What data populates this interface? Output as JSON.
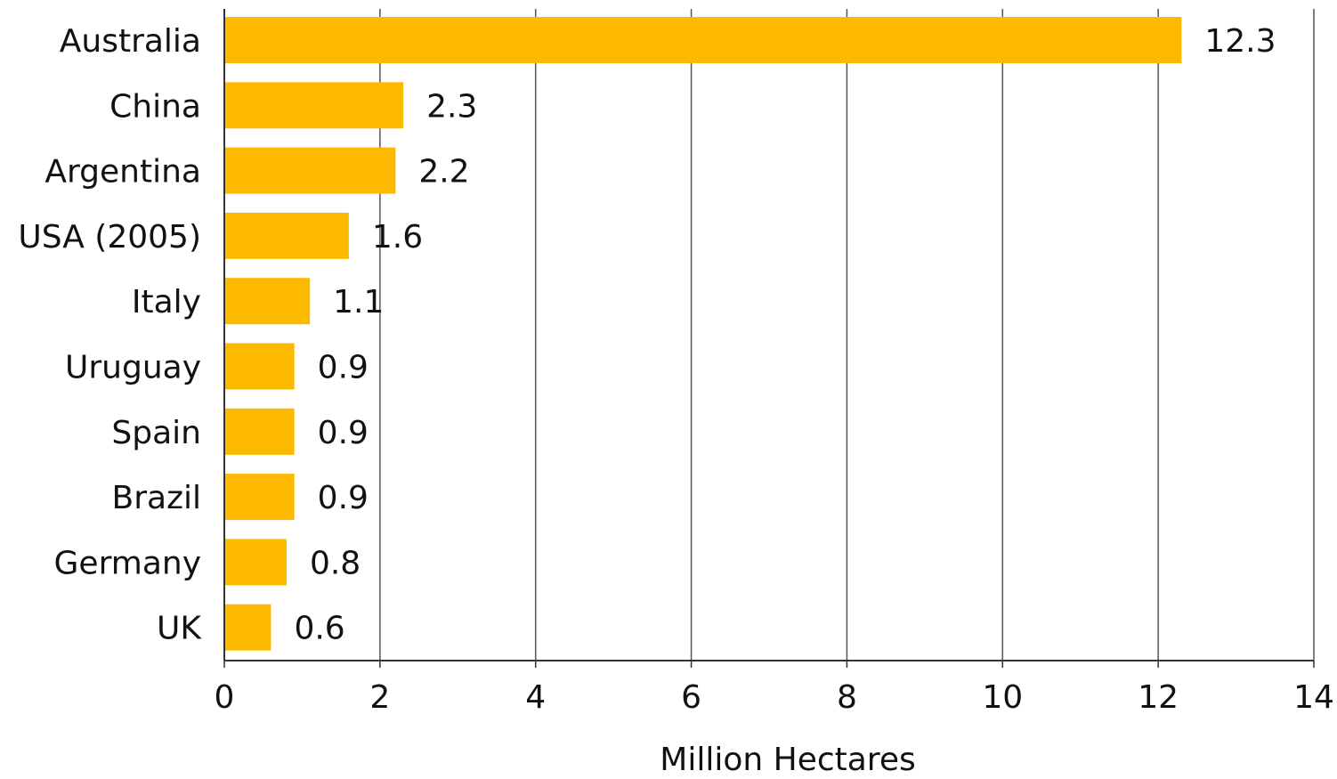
{
  "chart_data": {
    "type": "bar",
    "orientation": "horizontal",
    "categories": [
      "Australia",
      "China",
      "Argentina",
      "USA (2005)",
      "Italy",
      "Uruguay",
      "Spain",
      "Brazil",
      "Germany",
      "UK"
    ],
    "values": [
      12.3,
      2.3,
      2.2,
      1.6,
      1.1,
      0.9,
      0.9,
      0.9,
      0.8,
      0.6
    ],
    "value_labels": [
      "12.3",
      "2.3",
      "2.2",
      "1.6",
      "1.1",
      "0.9",
      "0.9",
      "0.9",
      "0.8",
      "0.6"
    ],
    "xlabel": "Million Hectares",
    "ylabel": "",
    "xlim": [
      0,
      14
    ],
    "xticks": [
      "0",
      "2",
      "4",
      "6",
      "8",
      "10",
      "12",
      "14"
    ],
    "grid": "vertical",
    "colors": {
      "bar": "#FDB900",
      "grid": "#555555",
      "axis": "#333333"
    }
  }
}
